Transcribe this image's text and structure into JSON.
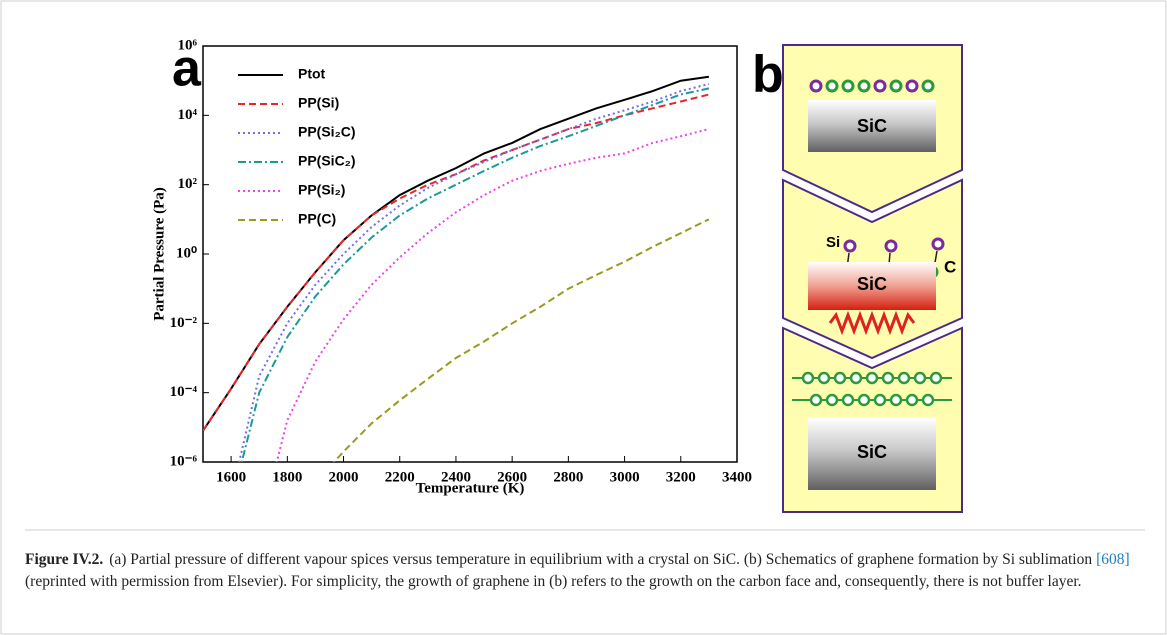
{
  "chart_data": {
    "type": "line",
    "panel_label": "a",
    "x_label": "Temperature (K)",
    "y_label": "Partial Pressure (Pa)",
    "x": [
      1500,
      1600,
      1700,
      1800,
      1900,
      2000,
      2100,
      2200,
      2300,
      2400,
      2500,
      2600,
      2700,
      2800,
      2900,
      3000,
      3100,
      3200,
      3300
    ],
    "xlim": [
      1500,
      3400
    ],
    "xticks": [
      1600,
      1800,
      2000,
      2200,
      2400,
      2600,
      2800,
      3000,
      3200,
      3400
    ],
    "ylim": [
      1e-06,
      1000000.0
    ],
    "log_y": true,
    "yticks": [
      {
        "value": 1e-06,
        "label": "10⁻⁶"
      },
      {
        "value": 0.0001,
        "label": "10⁻⁴"
      },
      {
        "value": 0.01,
        "label": "10⁻²"
      },
      {
        "value": 1,
        "label": "10⁰"
      },
      {
        "value": 100,
        "label": "10²"
      },
      {
        "value": 10000,
        "label": "10⁴"
      },
      {
        "value": 1000000,
        "label": "10⁶"
      }
    ],
    "legend": "upper left",
    "series": [
      {
        "name": "Ptot",
        "color": "#000000",
        "dash": "solid",
        "values": [
          8e-06,
          0.00013,
          0.0025,
          0.03,
          0.3,
          2.5,
          13,
          50,
          130,
          300,
          800,
          1600,
          4000,
          8000,
          16000,
          28000,
          50000,
          100000,
          130000
        ]
      },
      {
        "name": "PP(Si)",
        "color": "#e8262a",
        "dash": "dashed",
        "values": [
          8e-06,
          0.00013,
          0.0025,
          0.03,
          0.3,
          2.5,
          13,
          40,
          100,
          200,
          500,
          1000,
          2000,
          4000,
          6000,
          10000,
          16000,
          25000,
          40000
        ]
      },
      {
        "name": "PP(Si₂C)",
        "color": "#6f6fe8",
        "dash": "dotted",
        "values": [
          null,
          1e-07,
          0.0003,
          0.01,
          0.13,
          1,
          6,
          25,
          80,
          200,
          450,
          1000,
          2000,
          4000,
          8000,
          14000,
          25000,
          50000,
          80000
        ]
      },
      {
        "name": "PP(SiC₂)",
        "color": "#1a9a9a",
        "dash": "dashdot",
        "values": [
          null,
          6e-08,
          0.0001,
          0.004,
          0.06,
          0.5,
          3,
          13,
          40,
          100,
          250,
          600,
          1300,
          2500,
          5000,
          10000,
          20000,
          40000,
          60000
        ]
      },
      {
        "name": "PP(Si₂)",
        "color": "#f040f0",
        "dash": "dotted",
        "values": [
          null,
          null,
          1e-08,
          1.6e-05,
          0.0008,
          0.013,
          0.13,
          0.8,
          4,
          16,
          50,
          130,
          250,
          400,
          600,
          800,
          1600,
          2500,
          4000
        ]
      },
      {
        "name": "PP(C)",
        "color": "#9a9a20",
        "dash": "dashed",
        "values": [
          null,
          null,
          null,
          null,
          2.5e-07,
          2e-06,
          1.3e-05,
          6e-05,
          0.00025,
          0.001,
          0.003,
          0.01,
          0.03,
          0.1,
          0.25,
          0.6,
          1.6,
          4,
          10
        ]
      }
    ]
  },
  "schematic": {
    "panel_label": "b",
    "steps": [
      {
        "substrate": "SiC"
      },
      {
        "substrate": "SiC",
        "atom_labels": [
          "Si",
          "C"
        ]
      },
      {
        "substrate": "SiC"
      }
    ]
  },
  "caption": {
    "label": "Figure IV.2.",
    "text": "(a) Partial pressure of different vapour spices versus temperature in equilibrium with a crystal on SiC. (b) Schematics of graphene formation by Si sublimation",
    "reference": "[608]",
    "text_after": "(reprinted with permission from Elsevier). For simplicity, the growth of graphene in (b) refers to the growth on the carbon face and, consequently, there is not buffer layer."
  }
}
